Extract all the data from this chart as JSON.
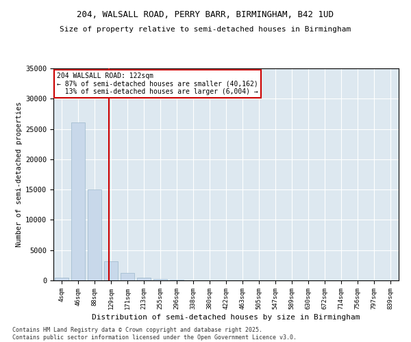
{
  "title1": "204, WALSALL ROAD, PERRY BARR, BIRMINGHAM, B42 1UD",
  "title2": "Size of property relative to semi-detached houses in Birmingham",
  "xlabel": "Distribution of semi-detached houses by size in Birmingham",
  "ylabel": "Number of semi-detached properties",
  "bins": [
    "4sqm",
    "46sqm",
    "88sqm",
    "129sqm",
    "171sqm",
    "213sqm",
    "255sqm",
    "296sqm",
    "338sqm",
    "380sqm",
    "422sqm",
    "463sqm",
    "505sqm",
    "547sqm",
    "589sqm",
    "630sqm",
    "672sqm",
    "714sqm",
    "756sqm",
    "797sqm",
    "839sqm"
  ],
  "bar_heights": [
    400,
    26100,
    15000,
    3200,
    1200,
    500,
    200,
    80,
    0,
    0,
    0,
    0,
    0,
    0,
    0,
    0,
    0,
    0,
    0,
    0,
    0
  ],
  "bar_color": "#c8d8ea",
  "bar_edge_color": "#9ab8cc",
  "vline_color": "#cc0000",
  "vline_x": 2.88,
  "annotation_line1": "204 WALSALL ROAD: 122sqm",
  "annotation_line2": "← 87% of semi-detached houses are smaller (40,162)",
  "annotation_line3": "13% of semi-detached houses are larger (6,004) →",
  "ylim": [
    0,
    35000
  ],
  "yticks": [
    0,
    5000,
    10000,
    15000,
    20000,
    25000,
    30000,
    35000
  ],
  "bg_color": "#dde8f0",
  "grid_color": "#ffffff",
  "footer1": "Contains HM Land Registry data © Crown copyright and database right 2025.",
  "footer2": "Contains public sector information licensed under the Open Government Licence v3.0."
}
